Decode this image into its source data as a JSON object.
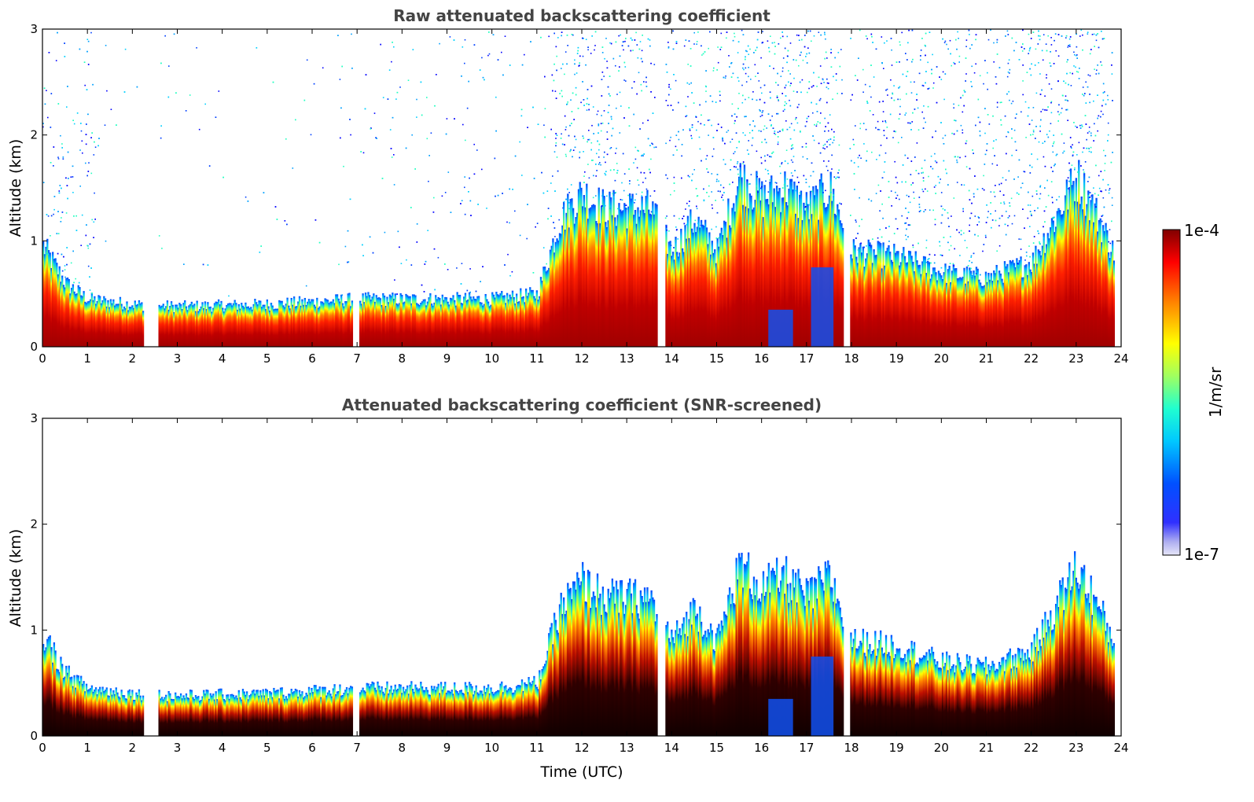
{
  "chart_data": [
    {
      "type": "heatmap",
      "title": "Raw attenuated backscattering coefficient",
      "xlabel": "",
      "ylabel": "Altitude (km)",
      "xlim": [
        0,
        24
      ],
      "ylim": [
        0,
        3
      ],
      "xticks": [
        0,
        1,
        2,
        3,
        4,
        5,
        6,
        7,
        8,
        9,
        10,
        11,
        12,
        13,
        14,
        15,
        16,
        17,
        18,
        19,
        20,
        21,
        22,
        23,
        24
      ],
      "yticks": [
        0,
        1,
        2,
        3
      ],
      "data_gaps_utc": [
        [
          2.25,
          2.55
        ],
        [
          6.9,
          7.05
        ],
        [
          13.65,
          13.85
        ],
        [
          17.8,
          17.95
        ]
      ],
      "boundary_layer_top_km": [
        {
          "x": 0,
          "y": 0.95
        },
        {
          "x": 0.5,
          "y": 0.6
        },
        {
          "x": 1,
          "y": 0.45
        },
        {
          "x": 2,
          "y": 0.4
        },
        {
          "x": 3,
          "y": 0.38
        },
        {
          "x": 5,
          "y": 0.4
        },
        {
          "x": 7,
          "y": 0.45
        },
        {
          "x": 10,
          "y": 0.45
        },
        {
          "x": 11,
          "y": 0.5
        },
        {
          "x": 11.5,
          "y": 1.2
        },
        {
          "x": 12,
          "y": 1.45
        },
        {
          "x": 12.5,
          "y": 1.3
        },
        {
          "x": 13,
          "y": 1.3
        },
        {
          "x": 13.5,
          "y": 1.3
        },
        {
          "x": 14,
          "y": 0.9
        },
        {
          "x": 14.5,
          "y": 1.2
        },
        {
          "x": 15,
          "y": 0.9
        },
        {
          "x": 15.5,
          "y": 1.6
        },
        {
          "x": 16,
          "y": 1.4
        },
        {
          "x": 16.5,
          "y": 1.5
        },
        {
          "x": 17,
          "y": 1.3
        },
        {
          "x": 17.5,
          "y": 1.5
        },
        {
          "x": 18,
          "y": 0.9
        },
        {
          "x": 19,
          "y": 0.85
        },
        {
          "x": 20,
          "y": 0.7
        },
        {
          "x": 21,
          "y": 0.65
        },
        {
          "x": 22,
          "y": 0.8
        },
        {
          "x": 22.5,
          "y": 1.2
        },
        {
          "x": 23,
          "y": 1.6
        },
        {
          "x": 23.5,
          "y": 1.2
        },
        {
          "x": 23.8,
          "y": 0.9
        }
      ]
    },
    {
      "type": "heatmap",
      "title": "Attenuated backscattering coefficient (SNR-screened)",
      "xlabel": "Time (UTC)",
      "ylabel": "Altitude (km)",
      "xlim": [
        0,
        24
      ],
      "ylim": [
        0,
        3
      ],
      "xticks": [
        0,
        1,
        2,
        3,
        4,
        5,
        6,
        7,
        8,
        9,
        10,
        11,
        12,
        13,
        14,
        15,
        16,
        17,
        18,
        19,
        20,
        21,
        22,
        23,
        24
      ],
      "yticks": [
        0,
        1,
        2,
        3
      ],
      "data_gaps_utc": [
        [
          2.25,
          2.55
        ],
        [
          6.9,
          7.05
        ],
        [
          13.65,
          13.85
        ],
        [
          17.8,
          17.95
        ]
      ]
    }
  ],
  "colorbar": {
    "label": "1/m/sr",
    "max_label": "1e-4",
    "min_label": "1e-7",
    "vmin": 1e-07,
    "vmax": 0.0001,
    "scale": "log",
    "colormap": [
      "#e8e8f8",
      "#0000ff",
      "#00a0ff",
      "#00ffff",
      "#80ff80",
      "#ffff00",
      "#ff8000",
      "#ff0000",
      "#800000"
    ]
  }
}
